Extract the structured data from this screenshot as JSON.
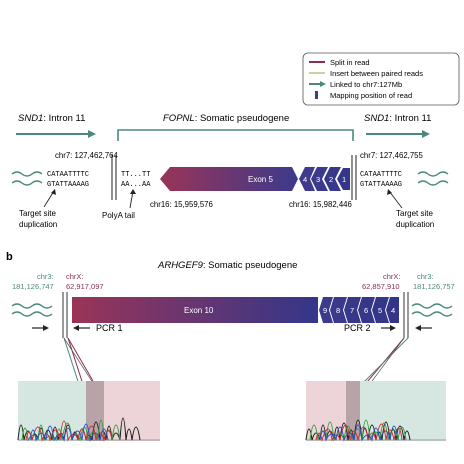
{
  "legend": {
    "items": [
      {
        "label": "Split in read"
      },
      {
        "label": "Insert between paired reads"
      },
      {
        "label": "Linked to chr7:127Mb"
      },
      {
        "label": "Mapping position of read"
      }
    ],
    "colors": {
      "split": "#8b2f52",
      "insert": "#c7d49a",
      "linked": "#4a8a7e",
      "mapping": "#3a3f8f"
    }
  },
  "panel_a": {
    "left_gene_italic": "SND1",
    "left_gene_rest": ": Intron 11",
    "center_gene_italic": "FOPNL",
    "center_gene_rest": ": Somatic pseudogene",
    "right_gene_italic": "SND1",
    "right_gene_rest": ": Intron 11",
    "coord_left": "chr7: 127,462,764",
    "coord_right": "chr7: 127,462,755",
    "seq_left_top": "CATAATTTTC",
    "seq_left_bottom": "GTATTAAAAG",
    "polya_top": "TT...TT",
    "polya_bottom": "AA...AA",
    "seq_right_top": "CATAATTTTC",
    "seq_right_bottom": "GTATTAAAAG",
    "exon_main": "Exon 5",
    "exon_small": [
      "4",
      "3",
      "2",
      "1"
    ],
    "coord_chr16_left": "chr16: 15,959,576",
    "coord_chr16_right": "chr16: 15,982,446",
    "polya_label": "PolyA tail",
    "tsd_left_1": "Target site",
    "tsd_left_2": "duplication",
    "tsd_right_1": "Target site",
    "tsd_right_2": "duplication"
  },
  "panel_b": {
    "label": "b",
    "title_italic": "ARHGEF9",
    "title_rest": ": Somatic pseudogene",
    "chr3_left_label": "chr3:",
    "chr3_left_coord": "181,126,747",
    "chrX_left_label": "chrX:",
    "chrX_left_coord": "62,917,097",
    "chrX_right_label": "chrX:",
    "chrX_right_coord": "62,857,910",
    "chr3_right_label": "chr3:",
    "chr3_right_coord": "181,126,757",
    "exon_main": "Exon 10",
    "exon_small": [
      "9",
      "8",
      "7",
      "6",
      "5",
      "4"
    ],
    "pcr1": "PCR 1",
    "pcr2": "PCR 2"
  }
}
